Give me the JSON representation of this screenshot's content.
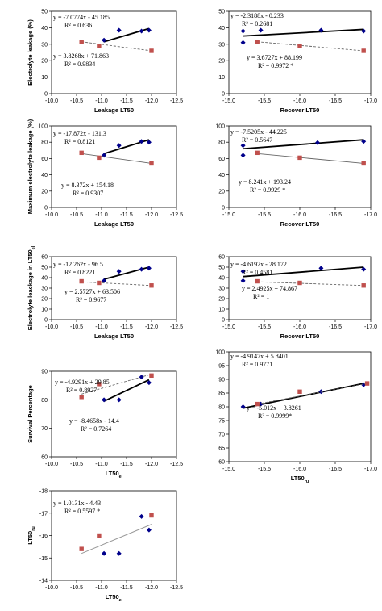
{
  "chart_data": [
    {
      "type": "scatter",
      "ylabel": "Electrolyte leakage (%)",
      "xlabel": "Leakage LT50",
      "xlim": [
        -10.0,
        -12.5
      ],
      "ylim": [
        0,
        50
      ],
      "xticks": [
        "-10.0",
        "-10.5",
        "-11.0",
        "-11.5",
        "-12.0",
        "-12.5"
      ],
      "yticks": [
        "0",
        "10",
        "20",
        "30",
        "40",
        "50"
      ],
      "series": [
        {
          "marker": "diamond",
          "color": "#00008b",
          "points": [
            [
              -11.05,
              32.5
            ],
            [
              -11.35,
              38.5
            ],
            [
              -11.8,
              38.0
            ],
            [
              -11.95,
              38.5
            ]
          ],
          "fit": {
            "x": [
              -11.05,
              -11.95
            ],
            "y": [
              31.5,
              39.5
            ],
            "style": "solid"
          },
          "equation": "y = -7.0774x - 45.185",
          "r2": "R² = 0.636"
        },
        {
          "marker": "square",
          "color": "#c0504d",
          "points": [
            [
              -10.6,
              31.5
            ],
            [
              -10.95,
              29.0
            ],
            [
              -12.0,
              26.0
            ]
          ],
          "fit": {
            "x": [
              -10.6,
              -12.0
            ],
            "y": [
              31.5,
              26.0
            ],
            "style": "dashed"
          },
          "equation": "y = 3.8268x + 71.863",
          "r2": "R² = 0.9834"
        }
      ]
    },
    {
      "type": "scatter",
      "ylabel": "",
      "xlabel": "Recover LT50",
      "xlim": [
        -15.0,
        -17.0
      ],
      "ylim": [
        0,
        50
      ],
      "xticks": [
        "-15.0",
        "-15.5",
        "-16.0",
        "-16.5",
        "-17.0"
      ],
      "yticks": [
        "0",
        "10",
        "20",
        "30",
        "40",
        "50"
      ],
      "series": [
        {
          "marker": "diamond",
          "color": "#00008b",
          "points": [
            [
              -15.2,
              38.0
            ],
            [
              -15.2,
              31.0
            ],
            [
              -15.45,
              38.5
            ],
            [
              -16.3,
              38.5
            ],
            [
              -16.9,
              38.0
            ]
          ],
          "fit": {
            "x": [
              -15.2,
              -16.9
            ],
            "y": [
              35.0,
              39.0
            ],
            "style": "solid"
          },
          "equation": "y = -2.3188x - 0.233",
          "r2": "R² = 0.2681"
        },
        {
          "marker": "square",
          "color": "#c0504d",
          "points": [
            [
              -15.4,
              31.5
            ],
            [
              -16.0,
              29.0
            ],
            [
              -16.9,
              26.0
            ]
          ],
          "fit": {
            "x": [
              -15.4,
              -16.9
            ],
            "y": [
              31.5,
              26.0
            ],
            "style": "dashed"
          },
          "equation": "y = 3.6727x + 88.199",
          "r2": "R² = 0.9972 *"
        }
      ]
    },
    {
      "type": "scatter",
      "ylabel": "Maximum electrolyte leakage (%)",
      "xlabel": "Leakage LT50",
      "xlim": [
        -10.0,
        -12.5
      ],
      "ylim": [
        0,
        100
      ],
      "xticks": [
        "-10.0",
        "-10.5",
        "-11.0",
        "-11.5",
        "-12.0",
        "-12.5"
      ],
      "yticks": [
        "0",
        "20",
        "40",
        "60",
        "80",
        "100"
      ],
      "series": [
        {
          "marker": "diamond",
          "color": "#00008b",
          "points": [
            [
              -11.05,
              64.0
            ],
            [
              -11.35,
              76.0
            ],
            [
              -11.8,
              81.0
            ],
            [
              -11.95,
              80.0
            ]
          ],
          "fit": {
            "x": [
              -11.05,
              -11.95
            ],
            "y": [
              66.0,
              83.0
            ],
            "style": "solid"
          },
          "equation": "y = -17.872x - 131.3",
          "r2": "R² = 0.8121"
        },
        {
          "marker": "square",
          "color": "#c0504d",
          "points": [
            [
              -10.6,
              67.0
            ],
            [
              -10.95,
              61.0
            ],
            [
              -12.0,
              54.0
            ]
          ],
          "fit": {
            "x": [
              -10.6,
              -12.0
            ],
            "y": [
              66.0,
              54.0
            ],
            "style": "solid"
          },
          "equation": "y = 8.372x + 154.18",
          "r2": "R² = 0.9307"
        }
      ]
    },
    {
      "type": "scatter",
      "ylabel": "",
      "xlabel": "Recover LT50",
      "xlim": [
        -15.0,
        -17.0
      ],
      "ylim": [
        0,
        100
      ],
      "xticks": [
        "-15.0",
        "-15.5",
        "-16.0",
        "-16.5",
        "-17.0"
      ],
      "yticks": [
        "0",
        "20",
        "40",
        "60",
        "80",
        "100"
      ],
      "series": [
        {
          "marker": "diamond",
          "color": "#00008b",
          "points": [
            [
              -15.2,
              76.0
            ],
            [
              -15.2,
              64.0
            ],
            [
              -16.25,
              79.5
            ],
            [
              -16.9,
              81.0
            ]
          ],
          "fit": {
            "x": [
              -15.2,
              -16.9
            ],
            "y": [
              72.0,
              83.0
            ],
            "style": "solid"
          },
          "equation": "y = -7.5205x - 44.225",
          "r2": "R² = 0.5647"
        },
        {
          "marker": "square",
          "color": "#c0504d",
          "points": [
            [
              -15.4,
              67.0
            ],
            [
              -16.0,
              61.0
            ],
            [
              -16.9,
              54.0
            ]
          ],
          "fit": {
            "x": [
              -15.4,
              -16.9
            ],
            "y": [
              66.0,
              54.0
            ],
            "style": "solid"
          },
          "equation": "y = 8.241x + 193.24",
          "r2": "R² = 0.9929 *"
        }
      ]
    },
    {
      "type": "scatter",
      "ylabel": "Electrolyte leackage in LT50",
      "ylabel_sub": "el",
      "xlabel": "Leakage LT50",
      "xlim": [
        -10.0,
        -12.5
      ],
      "ylim": [
        0,
        60
      ],
      "xticks": [
        "-10.0",
        "-10.5",
        "-11.0",
        "-11.5",
        "-12.0",
        "-12.5"
      ],
      "yticks": [
        "0",
        "10",
        "20",
        "30",
        "40",
        "50",
        "60"
      ],
      "series": [
        {
          "marker": "diamond",
          "color": "#00008b",
          "points": [
            [
              -11.05,
              37.0
            ],
            [
              -11.35,
              46.0
            ],
            [
              -11.8,
              48.0
            ],
            [
              -11.95,
              49.0
            ]
          ],
          "fit": {
            "x": [
              -11.05,
              -11.95
            ],
            "y": [
              38.5,
              50.0
            ],
            "style": "solid"
          },
          "equation": "y = -12.262x - 96.5",
          "r2": "R² = 0.8221"
        },
        {
          "marker": "square",
          "color": "#c0504d",
          "points": [
            [
              -10.6,
              36.5
            ],
            [
              -10.95,
              35.0
            ],
            [
              -12.0,
              32.5
            ]
          ],
          "fit": {
            "x": [
              -10.6,
              -12.0
            ],
            "y": [
              36.0,
              32.5
            ],
            "style": "dashed"
          },
          "equation": "y = 2.5727x + 63.506",
          "r2": "R² = 0.9677"
        }
      ]
    },
    {
      "type": "scatter",
      "ylabel": "",
      "xlabel": "Recover LT50",
      "xlim": [
        -15.0,
        -17.0
      ],
      "ylim": [
        0,
        60
      ],
      "xticks": [
        "-15.0",
        "-15.5",
        "-16.0",
        "-16.5",
        "-17.0"
      ],
      "yticks": [
        "0",
        "10",
        "20",
        "30",
        "40",
        "50",
        "60"
      ],
      "series": [
        {
          "marker": "diamond",
          "color": "#00008b",
          "points": [
            [
              -15.2,
              46.0
            ],
            [
              -15.2,
              37.0
            ],
            [
              -16.3,
              49.0
            ],
            [
              -16.9,
              48.0
            ]
          ],
          "fit": {
            "x": [
              -15.2,
              -16.9
            ],
            "y": [
              41.0,
              50.0
            ],
            "style": "solid"
          },
          "equation": "y = -4.6192x - 28.172",
          "r2": "R² = 0.4581"
        },
        {
          "marker": "square",
          "color": "#c0504d",
          "points": [
            [
              -15.4,
              36.5
            ],
            [
              -16.0,
              35.0
            ],
            [
              -16.9,
              32.5
            ]
          ],
          "fit": {
            "x": [
              -15.4,
              -16.9
            ],
            "y": [
              36.0,
              32.5
            ],
            "style": "dashed"
          },
          "equation": "y = 2.4925x + 74.867",
          "r2": "R² = 1"
        }
      ]
    },
    {
      "type": "scatter",
      "ylabel": "Survival Percentage",
      "xlabel": "LT50",
      "xlabel_sub": "el",
      "xlim": [
        -10.0,
        -12.5
      ],
      "ylim": [
        60,
        90
      ],
      "xticks": [
        "-10.0",
        "-10.5",
        "-11.0",
        "-11.5",
        "-12.0",
        "-12.5"
      ],
      "yticks": [
        "60",
        "70",
        "80",
        "90"
      ],
      "series": [
        {
          "marker": "square",
          "color": "#c0504d",
          "points": [
            [
              -10.6,
              81.0
            ],
            [
              -10.95,
              85.5
            ],
            [
              -12.0,
              88.5
            ]
          ],
          "fit": {
            "x": [
              -10.6,
              -12.0
            ],
            "y": [
              82.0,
              89.0
            ],
            "style": "dashed"
          },
          "equation": "y = -4.9291x + 29.85",
          "r2": "R² = 0.8927"
        },
        {
          "marker": "diamond",
          "color": "#00008b",
          "points": [
            [
              -11.05,
              80.0
            ],
            [
              -11.35,
              80.0
            ],
            [
              -11.8,
              88.0
            ],
            [
              -11.95,
              86.0
            ]
          ],
          "fit": {
            "x": [
              -11.05,
              -11.95
            ],
            "y": [
              79.5,
              87.0
            ],
            "style": "solid"
          },
          "equation": "y = -8.4658x - 14.4",
          "r2": "R² = 0.7264"
        }
      ]
    },
    {
      "type": "scatter",
      "ylabel": "",
      "xlabel": "LT50",
      "xlabel_sub": "ru",
      "xlim": [
        -15.0,
        -17.0
      ],
      "ylim": [
        60,
        100
      ],
      "xticks": [
        "-15.0",
        "-15.5",
        "-16.0",
        "-16.5",
        "-17.0"
      ],
      "yticks": [
        "60",
        "65",
        "70",
        "75",
        "80",
        "85",
        "90",
        "95",
        "100"
      ],
      "series": [
        {
          "marker": "diamond",
          "color": "#00008b",
          "points": [
            [
              -15.2,
              80.0
            ],
            [
              -15.45,
              81.0
            ],
            [
              -16.3,
              85.5
            ],
            [
              -16.9,
              88.0
            ]
          ],
          "fit": {
            "x": [
              -15.2,
              -16.9
            ],
            "y": [
              79.5,
              88.5
            ],
            "style": "solid"
          },
          "equation": "y = -4.9147x + 5.8401",
          "r2": "R² = 0.9771"
        },
        {
          "marker": "square",
          "color": "#c0504d",
          "points": [
            [
              -15.4,
              81.0
            ],
            [
              -16.0,
              85.5
            ],
            [
              -16.95,
              88.5
            ]
          ],
          "fit": {
            "x": [
              -15.4,
              -16.95
            ],
            "y": [
              81.0,
              88.5
            ],
            "style": "dashed"
          },
          "equation": "y = -5.012x + 3.8261",
          "r2": "R² = 0.9999*"
        }
      ]
    },
    {
      "type": "scatter",
      "ylabel": "LT50",
      "ylabel_sub": "ru",
      "xlabel": "LT50",
      "xlabel_sub": "el",
      "xlim": [
        -10.0,
        -12.5
      ],
      "ylim": [
        -14,
        -18
      ],
      "xticks": [
        "-10.0",
        "-10.5",
        "-11.0",
        "-11.5",
        "-12.0",
        "-12.5"
      ],
      "yticks": [
        "-14",
        "-15",
        "-16",
        "-17",
        "-18"
      ],
      "series": [
        {
          "marker": "square",
          "color": "#c0504d",
          "points": [
            [
              -10.6,
              -15.4
            ],
            [
              -10.95,
              -16.0
            ],
            [
              -12.0,
              -16.9
            ]
          ],
          "fit": null,
          "equation": "",
          "r2": ""
        },
        {
          "marker": "diamond",
          "color": "#00008b",
          "points": [
            [
              -11.05,
              -15.2
            ],
            [
              -11.35,
              -15.2
            ],
            [
              -11.8,
              -16.85
            ],
            [
              -11.95,
              -16.25
            ]
          ],
          "fit": null,
          "equation": "",
          "r2": ""
        }
      ],
      "trend": {
        "x": [
          -10.6,
          -12.0
        ],
        "y": [
          -15.2,
          -16.5
        ],
        "color": "#999999"
      },
      "equation": "y = 1.0131x - 4.43",
      "r2": "R² = 0.5597 *"
    }
  ]
}
